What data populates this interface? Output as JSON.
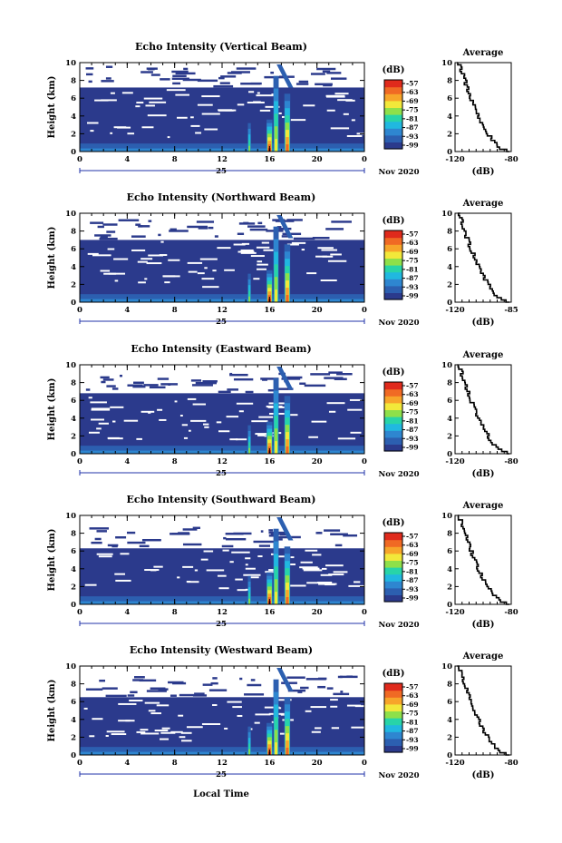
{
  "colors": {
    "background": "#2b3a8c",
    "scale": [
      "#2b3a8c",
      "#2c5fb0",
      "#2e86d0",
      "#21b8e0",
      "#28d4a8",
      "#8ee04a",
      "#f2e83a",
      "#f7a52a",
      "#f06a24",
      "#e02a1c"
    ]
  },
  "chart_data": [
    {
      "type": "heatmap",
      "title": "Echo Intensity (Vertical Beam)",
      "ylabel": "Height (km)",
      "xlim": [
        0,
        24
      ],
      "ylim": [
        0,
        10
      ],
      "xticks": [
        "0",
        "4",
        "8",
        "12",
        "16",
        "20",
        "0"
      ],
      "yticks": [
        "0",
        "2",
        "4",
        "6",
        "8",
        "10"
      ],
      "date_center": "25",
      "date_right": "Nov 2020",
      "colorbar": {
        "unit": "(dB)",
        "ticks": [
          "-57",
          "-63",
          "-69",
          "-75",
          "-81",
          "-87",
          "-93",
          "-99"
        ]
      },
      "profile": {
        "title": "Average",
        "xlabel": "(dB)",
        "xticks": [
          "-120",
          "-80"
        ],
        "yticks": [
          "0",
          "2",
          "4",
          "6",
          "8",
          "10"
        ]
      }
    },
    {
      "type": "heatmap",
      "title": "Echo Intensity (Northward Beam)",
      "ylabel": "Height (km)",
      "xlim": [
        0,
        24
      ],
      "ylim": [
        0,
        10
      ],
      "xticks": [
        "0",
        "4",
        "8",
        "12",
        "16",
        "20",
        "0"
      ],
      "yticks": [
        "0",
        "2",
        "4",
        "6",
        "8",
        "10"
      ],
      "date_center": "25",
      "date_right": "Nov 2020",
      "colorbar": {
        "unit": "(dB)",
        "ticks": [
          "-57",
          "-63",
          "-69",
          "-75",
          "-81",
          "-87",
          "-93",
          "-99"
        ]
      },
      "profile": {
        "title": "Average",
        "xlabel": "(dB)",
        "xticks": [
          "-120",
          "-85"
        ],
        "yticks": [
          "0",
          "2",
          "4",
          "6",
          "8",
          "10"
        ]
      }
    },
    {
      "type": "heatmap",
      "title": "Echo Intensity (Eastward Beam)",
      "ylabel": "Height (km)",
      "xlim": [
        0,
        24
      ],
      "ylim": [
        0,
        10
      ],
      "xticks": [
        "0",
        "4",
        "8",
        "12",
        "16",
        "20",
        "0"
      ],
      "yticks": [
        "0",
        "2",
        "4",
        "6",
        "8",
        "10"
      ],
      "date_center": "25",
      "date_right": "Nov 2020",
      "colorbar": {
        "unit": "(dB)",
        "ticks": [
          "-57",
          "-63",
          "-69",
          "-75",
          "-81",
          "-87",
          "-93",
          "-99"
        ]
      },
      "profile": {
        "title": "Average",
        "xlabel": "(dB)",
        "xticks": [
          "-120",
          "-80"
        ],
        "yticks": [
          "0",
          "2",
          "4",
          "6",
          "8",
          "10"
        ]
      }
    },
    {
      "type": "heatmap",
      "title": "Echo Intensity (Southward Beam)",
      "ylabel": "Height (km)",
      "xlim": [
        0,
        24
      ],
      "ylim": [
        0,
        10
      ],
      "xticks": [
        "0",
        "4",
        "8",
        "12",
        "16",
        "20",
        "0"
      ],
      "yticks": [
        "0",
        "2",
        "4",
        "6",
        "8",
        "10"
      ],
      "date_center": "25",
      "date_right": "Nov 2020",
      "colorbar": {
        "unit": "(dB)",
        "ticks": [
          "-57",
          "-63",
          "-69",
          "-75",
          "-81",
          "-87",
          "-93",
          "-99"
        ]
      },
      "profile": {
        "title": "Average",
        "xlabel": "(dB)",
        "xticks": [
          "-120",
          "-80"
        ],
        "yticks": [
          "0",
          "2",
          "4",
          "6",
          "8",
          "10"
        ]
      }
    },
    {
      "type": "heatmap",
      "title": "Echo Intensity (Westward Beam)",
      "ylabel": "Height (km)",
      "xlim": [
        0,
        24
      ],
      "ylim": [
        0,
        10
      ],
      "xticks": [
        "0",
        "4",
        "8",
        "12",
        "16",
        "20",
        "0"
      ],
      "yticks": [
        "0",
        "2",
        "4",
        "6",
        "8",
        "10"
      ],
      "date_center": "25",
      "date_right": "Nov 2020",
      "colorbar": {
        "unit": "(dB)",
        "ticks": [
          "-57",
          "-63",
          "-69",
          "-75",
          "-81",
          "-87",
          "-93",
          "-99"
        ]
      },
      "profile": {
        "title": "Average",
        "xlabel": "(dB)",
        "xticks": [
          "-120",
          "-80"
        ],
        "yticks": [
          "0",
          "2",
          "4",
          "6",
          "8",
          "10"
        ]
      }
    }
  ],
  "footer": {
    "xlabel": "Local Time"
  }
}
